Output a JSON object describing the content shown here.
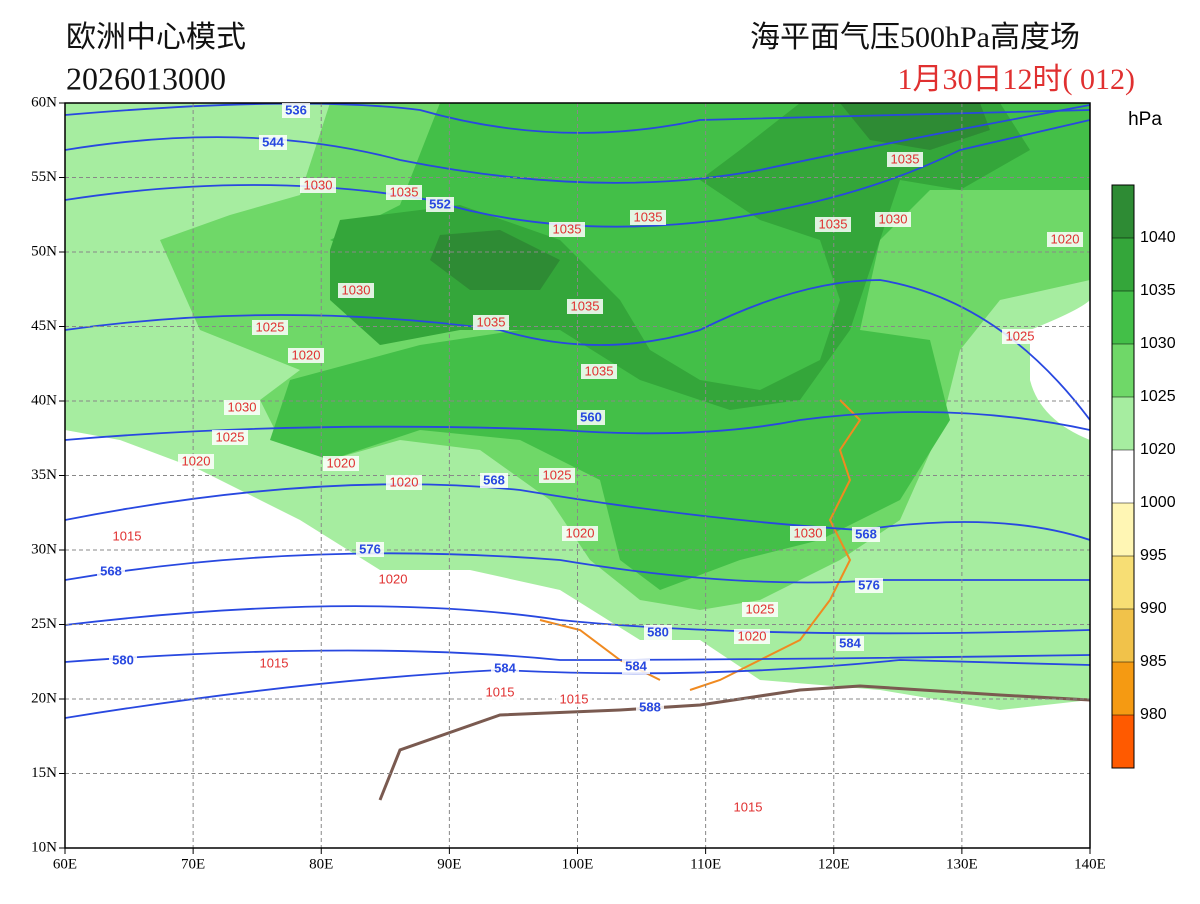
{
  "header": {
    "model": "欧洲中心模式",
    "init_time": "2026013000",
    "title": "海平面气压500hPa高度场",
    "valid_time": "1月30日12时( 012)"
  },
  "map": {
    "lat_ticks": [
      {
        "value": 60,
        "label": "60N"
      },
      {
        "value": 55,
        "label": "55N"
      },
      {
        "value": 50,
        "label": "50N"
      },
      {
        "value": 45,
        "label": "45N"
      },
      {
        "value": 40,
        "label": "40N"
      },
      {
        "value": 35,
        "label": "35N"
      },
      {
        "value": 30,
        "label": "30N"
      },
      {
        "value": 25,
        "label": "25N"
      },
      {
        "value": 20,
        "label": "20N"
      },
      {
        "value": 15,
        "label": "15N"
      },
      {
        "value": 10,
        "label": "10N"
      }
    ],
    "lon_ticks": [
      {
        "value": 60,
        "label": "60E"
      },
      {
        "value": 70,
        "label": "70E"
      },
      {
        "value": 80,
        "label": "80E"
      },
      {
        "value": 90,
        "label": "90E"
      },
      {
        "value": 100,
        "label": "100E"
      },
      {
        "value": 110,
        "label": "110E"
      },
      {
        "value": 120,
        "label": "120E"
      },
      {
        "value": 130,
        "label": "130E"
      },
      {
        "value": 140,
        "label": "140E"
      }
    ],
    "pressure_labels": [
      1035,
      1035,
      1030,
      1035,
      1035,
      1035,
      1030,
      1020,
      1030,
      1035,
      1035,
      1025,
      1020,
      1035,
      1025,
      1030,
      1025,
      1020,
      1020,
      1020,
      1025,
      1020,
      1030,
      1015,
      1020,
      1025,
      1020,
      1015,
      1015,
      1015,
      1015
    ],
    "height_labels": [
      536,
      544,
      552,
      560,
      568,
      568,
      576,
      568,
      576,
      580,
      580,
      584,
      584,
      584,
      588
    ]
  },
  "colorbar": {
    "unit": "hPa",
    "ticks": [
      1040,
      1035,
      1030,
      1025,
      1020,
      1000,
      995,
      990,
      985,
      980
    ],
    "colors": [
      "#2e8b34",
      "#34a63a",
      "#43bf48",
      "#6fd868",
      "#a6eda0",
      "#ffffff",
      "#fff6b4",
      "#f7de74",
      "#f1c24a",
      "#f59a12",
      "#ff5a00"
    ]
  }
}
